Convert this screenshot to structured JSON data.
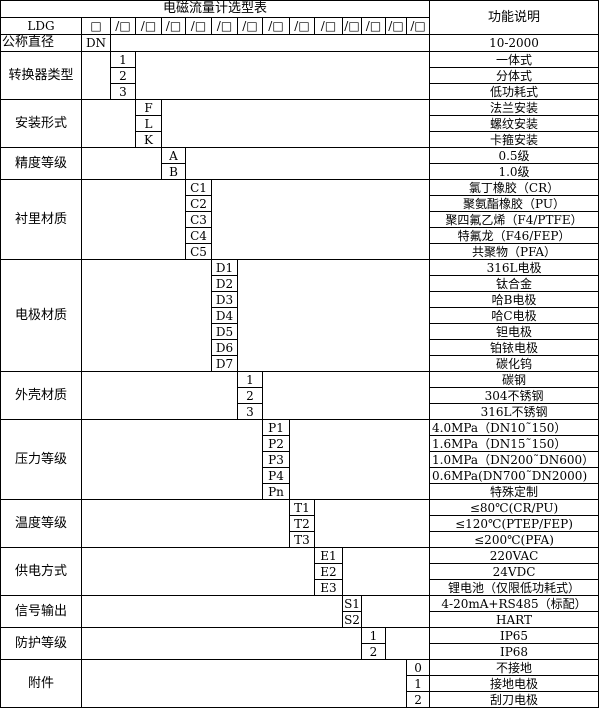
{
  "title": "电磁流量计选型表",
  "desc_header": "功能说明",
  "model_row": {
    "prefix": "LDG",
    "dn_box": "□",
    "boxes": [
      "/□",
      "/□",
      "/□",
      "/□",
      "/□",
      "/□",
      "/□",
      "/□",
      "/□",
      "/□",
      "/□",
      "/□",
      "/□"
    ]
  },
  "nominal": {
    "label": "公称直径",
    "code": "DN",
    "desc": "10-2000"
  },
  "groups": [
    {
      "label": "转换器类型",
      "col": 0,
      "items": [
        {
          "code": "1",
          "desc": "一体式"
        },
        {
          "code": "2",
          "desc": "分体式"
        },
        {
          "code": "3",
          "desc": "低功耗式"
        }
      ]
    },
    {
      "label": "安装形式",
      "col": 1,
      "items": [
        {
          "code": "F",
          "desc": "法兰安装"
        },
        {
          "code": "L",
          "desc": "螺纹安装"
        },
        {
          "code": "K",
          "desc": "卡箍安装"
        }
      ]
    },
    {
      "label": "精度等级",
      "col": 2,
      "items": [
        {
          "code": "A",
          "desc": "0.5级"
        },
        {
          "code": "B",
          "desc": "1.0级"
        }
      ]
    },
    {
      "label": "衬里材质",
      "col": 3,
      "items": [
        {
          "code": "C1",
          "desc": "氯丁橡胶（CR）"
        },
        {
          "code": "C2",
          "desc": "聚氨酯橡胶（PU）"
        },
        {
          "code": "C3",
          "desc": "聚四氟乙烯（F4/PTFE）"
        },
        {
          "code": "C4",
          "desc": "特氟龙（F46/FEP）"
        },
        {
          "code": "C5",
          "desc": "共聚物（PFA）"
        }
      ]
    },
    {
      "label": "电极材质",
      "col": 4,
      "items": [
        {
          "code": "D1",
          "desc": "316L电极"
        },
        {
          "code": "D2",
          "desc": "钛合金"
        },
        {
          "code": "D3",
          "desc": "哈B电极"
        },
        {
          "code": "D4",
          "desc": "哈C电极"
        },
        {
          "code": "D5",
          "desc": "钽电极"
        },
        {
          "code": "D6",
          "desc": "铂铱电极"
        },
        {
          "code": "D7",
          "desc": "碳化钨"
        }
      ]
    },
    {
      "label": "外壳材质",
      "col": 5,
      "items": [
        {
          "code": "1",
          "desc": "碳钢"
        },
        {
          "code": "2",
          "desc": "304不锈钢"
        },
        {
          "code": "3",
          "desc": "316L不锈钢"
        }
      ]
    },
    {
      "label": "压力等级",
      "col": 6,
      "items": [
        {
          "code": "P1",
          "desc": "4.0MPa（DN10˜150）"
        },
        {
          "code": "P2",
          "desc": "1.6MPa（DN15˜150）"
        },
        {
          "code": "P3",
          "desc": "1.0MPa（DN200˜DN600）"
        },
        {
          "code": "P4",
          "desc": "0.6MPa(DN700˜DN2000)"
        },
        {
          "code": "Pn",
          "desc": "特殊定制"
        }
      ]
    },
    {
      "label": "温度等级",
      "col": 7,
      "items": [
        {
          "code": "T1",
          "desc": "≤80℃(CR/PU)"
        },
        {
          "code": "T2",
          "desc": "≤120℃(PTEP/FEP)"
        },
        {
          "code": "T3",
          "desc": "≤200℃(PFA)"
        }
      ]
    },
    {
      "label": "供电方式",
      "col": 8,
      "items": [
        {
          "code": "E1",
          "desc": "220VAC"
        },
        {
          "code": "E2",
          "desc": "24VDC"
        },
        {
          "code": "E3",
          "desc": "锂电池（仅限低功耗式）"
        }
      ]
    },
    {
      "label": "信号输出",
      "col": 9,
      "items": [
        {
          "code": "S1",
          "desc": "4-20mA+RS485（标配）"
        },
        {
          "code": "S2",
          "desc": "HART"
        }
      ]
    },
    {
      "label": "防护等级",
      "col": 10,
      "items": [
        {
          "code": "1",
          "desc": "IP65"
        },
        {
          "code": "2",
          "desc": "IP68"
        }
      ]
    },
    {
      "label": "附件",
      "col": 12,
      "items": [
        {
          "code": "0",
          "desc": "不接地"
        },
        {
          "code": "1",
          "desc": "接地电极"
        },
        {
          "code": "2",
          "desc": "刮刀电极"
        }
      ]
    }
  ]
}
